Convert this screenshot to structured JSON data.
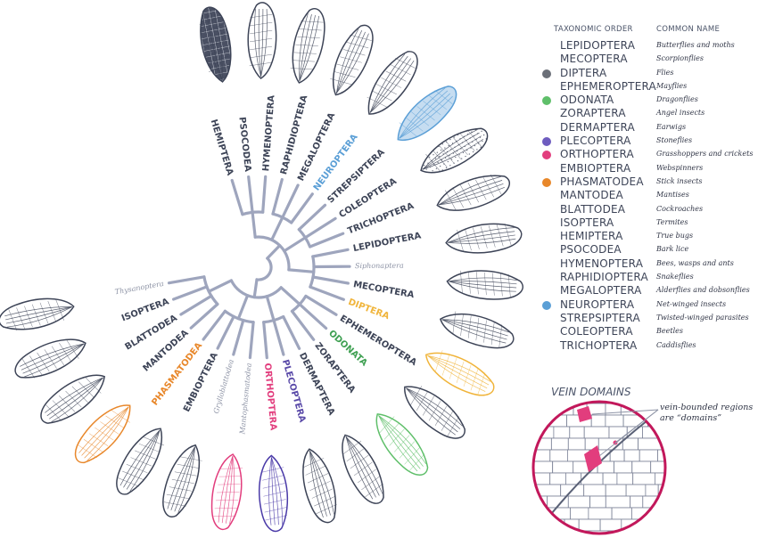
{
  "legend": {
    "col_order": "TAXONOMIC ORDER",
    "col_common": "COMMON NAME",
    "rows": [
      {
        "order": "LEPIDOPTERA",
        "common": "Butterflies and moths",
        "dot": ""
      },
      {
        "order": "MECOPTERA",
        "common": "Scorpionflies",
        "dot": ""
      },
      {
        "order": "DIPTERA",
        "common": "Flies",
        "dot": "#6b6f78"
      },
      {
        "order": "EPHEMEROPTERA",
        "common": "Mayflies",
        "dot": ""
      },
      {
        "order": "ODONATA",
        "common": "Dragonflies",
        "dot": "#5fbf6a"
      },
      {
        "order": "ZORAPTERA",
        "common": "Angel insects",
        "dot": ""
      },
      {
        "order": "DERMAPTERA",
        "common": "Earwigs",
        "dot": ""
      },
      {
        "order": "PLECOPTERA",
        "common": "Stoneflies",
        "dot": "#6e5cbf"
      },
      {
        "order": "ORTHOPTERA",
        "common": "Grasshoppers and crickets",
        "dot": "#e23d7d"
      },
      {
        "order": "EMBIOPTERA",
        "common": "Webspinners",
        "dot": ""
      },
      {
        "order": "PHASMATODEA",
        "common": "Stick insects",
        "dot": "#e8872a"
      },
      {
        "order": "MANTODEA",
        "common": "Mantises",
        "dot": ""
      },
      {
        "order": "BLATTODEA",
        "common": "Cockroaches",
        "dot": ""
      },
      {
        "order": "ISOPTERA",
        "common": "Termites",
        "dot": ""
      },
      {
        "order": "HEMIPTERA",
        "common": "True bugs",
        "dot": ""
      },
      {
        "order": "PSOCODEA",
        "common": "Bark lice",
        "dot": ""
      },
      {
        "order": "HYMENOPTERA",
        "common": "Bees, wasps and ants",
        "dot": ""
      },
      {
        "order": "RAPHIDIOPTERA",
        "common": "Snakeflies",
        "dot": ""
      },
      {
        "order": "MEGALOPTERA",
        "common": "Alderflies and dobsonflies",
        "dot": ""
      },
      {
        "order": "NEUROPTERA",
        "common": "Net-winged insects",
        "dot": "#5b9fd6"
      },
      {
        "order": "STREPSIPTERA",
        "common": "Twisted-winged parasites",
        "dot": ""
      },
      {
        "order": "COLEOPTERA",
        "common": "Beetles",
        "dot": ""
      },
      {
        "order": "TRICHOPTERA",
        "common": "Caddisflies",
        "dot": ""
      }
    ]
  },
  "tree_labels": [
    {
      "text": "HEMIPTERA",
      "color": "#3d4457",
      "style": "main"
    },
    {
      "text": "PSOCODEA",
      "color": "#3d4457",
      "style": "main"
    },
    {
      "text": "HYMENOPTERA",
      "color": "#3d4457",
      "style": "main"
    },
    {
      "text": "RAPHIDIOPTERA",
      "color": "#3d4457",
      "style": "main"
    },
    {
      "text": "MEGALOPTERA",
      "color": "#3d4457",
      "style": "main"
    },
    {
      "text": "NEUROPTERA",
      "color": "#5b9fd6",
      "style": "main"
    },
    {
      "text": "STREPSIPTERA",
      "color": "#3d4457",
      "style": "main"
    },
    {
      "text": "COLEOPTERA",
      "color": "#3d4457",
      "style": "main"
    },
    {
      "text": "TRICHOPTERA",
      "color": "#3d4457",
      "style": "main"
    },
    {
      "text": "LEPIDOPTERA",
      "color": "#3d4457",
      "style": "main"
    },
    {
      "text": "Siphonaptera",
      "color": "#8e94a6",
      "style": "minor"
    },
    {
      "text": "MECOPTERA",
      "color": "#3d4457",
      "style": "main"
    },
    {
      "text": "DIPTERA",
      "color": "#f0b43a",
      "style": "main"
    },
    {
      "text": "EPHEMEROPTERA",
      "color": "#3d4457",
      "style": "main"
    },
    {
      "text": "ODONATA",
      "color": "#3fa052",
      "style": "main"
    },
    {
      "text": "ZORAPTERA",
      "color": "#3d4457",
      "style": "main"
    },
    {
      "text": "DERMAPTERA",
      "color": "#3d4457",
      "style": "main"
    },
    {
      "text": "PLECOPTERA",
      "color": "#5a4aa8",
      "style": "main"
    },
    {
      "text": "ORTHOPTERA",
      "color": "#e23d7d",
      "style": "main"
    },
    {
      "text": "Mantophasmatodea",
      "color": "#8e94a6",
      "style": "minor"
    },
    {
      "text": "Grylloblattodea",
      "color": "#8e94a6",
      "style": "minor"
    },
    {
      "text": "EMBIOPTERA",
      "color": "#3d4457",
      "style": "main"
    },
    {
      "text": "PHASMATODEA",
      "color": "#e8872a",
      "style": "main"
    },
    {
      "text": "MANTODEA",
      "color": "#3d4457",
      "style": "main"
    },
    {
      "text": "BLATTODEA",
      "color": "#3d4457",
      "style": "main"
    },
    {
      "text": "ISOPTERA",
      "color": "#3d4457",
      "style": "main"
    },
    {
      "text": "Thysanoptera",
      "color": "#8e94a6",
      "style": "minor"
    }
  ],
  "wings": [
    {
      "name": "hemiptera-wing",
      "color": "#3d4457",
      "fill": "dark"
    },
    {
      "name": "psocodea-wing",
      "color": "#3d4457",
      "fill": "none"
    },
    {
      "name": "hymenoptera-wing",
      "color": "#3d4457",
      "fill": "none"
    },
    {
      "name": "raphidioptera-wing",
      "color": "#3d4457",
      "fill": "none"
    },
    {
      "name": "megaloptera-wing",
      "color": "#3d4457",
      "fill": "none"
    },
    {
      "name": "neuroptera-wing",
      "color": "#5b9fd6",
      "fill": "light"
    },
    {
      "name": "strepsiptera-wing",
      "color": "#3d4457",
      "fill": "dots"
    },
    {
      "name": "coleoptera-wing",
      "color": "#3d4457",
      "fill": "none"
    },
    {
      "name": "trichoptera-wing",
      "color": "#3d4457",
      "fill": "none"
    },
    {
      "name": "lepidoptera-wing",
      "color": "#3d4457",
      "fill": "none"
    },
    {
      "name": "mecoptera-wing",
      "color": "#3d4457",
      "fill": "none"
    },
    {
      "name": "diptera-wing",
      "color": "#f0b43a",
      "fill": "none"
    },
    {
      "name": "ephemeroptera-wing",
      "color": "#3d4457",
      "fill": "none"
    },
    {
      "name": "odonata-wing",
      "color": "#5fbf6a",
      "fill": "none"
    },
    {
      "name": "zoraptera-wing",
      "color": "#3d4457",
      "fill": "none"
    },
    {
      "name": "dermaptera-wing",
      "color": "#3d4457",
      "fill": "none"
    },
    {
      "name": "plecoptera-wing",
      "color": "#4a3aa8",
      "fill": "none"
    },
    {
      "name": "orthoptera-wing",
      "color": "#e23d7d",
      "fill": "none"
    },
    {
      "name": "grylloblattodea-wing",
      "color": "#3d4457",
      "fill": "none"
    },
    {
      "name": "embioptera-wing",
      "color": "#3d4457",
      "fill": "none"
    },
    {
      "name": "phasmatodea-wing",
      "color": "#e8872a",
      "fill": "none"
    },
    {
      "name": "mantodea-wing",
      "color": "#3d4457",
      "fill": "none"
    },
    {
      "name": "blattodea-wing",
      "color": "#3d4457",
      "fill": "none"
    },
    {
      "name": "isoptera-wing",
      "color": "#3d4457",
      "fill": "none"
    }
  ],
  "vein_domains": {
    "title": "VEIN DOMAINS",
    "note_line1": "vein-bounded regions",
    "note_line2": "are “domains”",
    "highlight_color": "#e23d7d",
    "ring_color": "#c2185b"
  }
}
